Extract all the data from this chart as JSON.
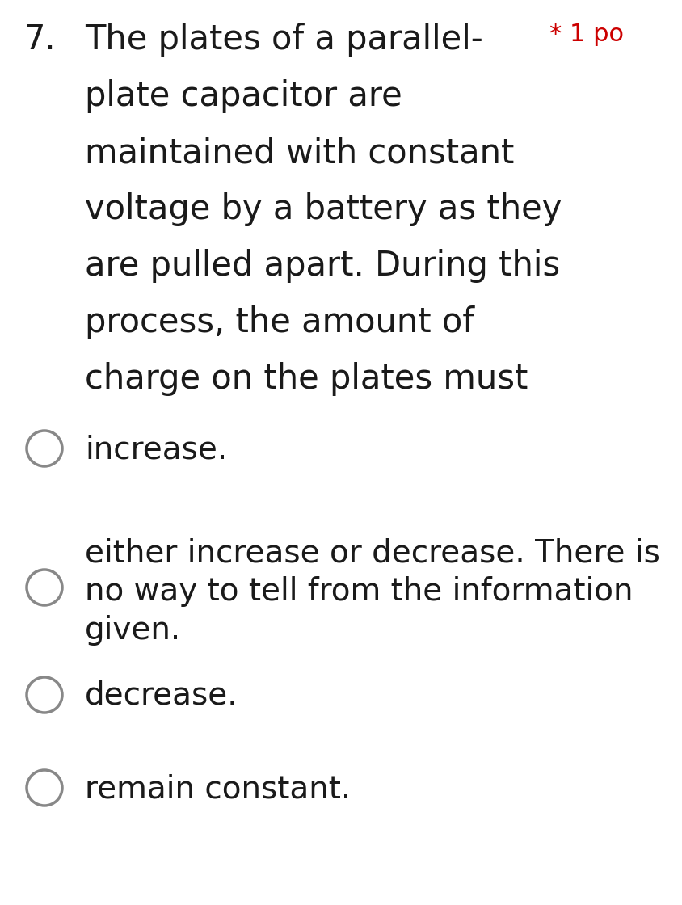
{
  "background_color": "#ffffff",
  "text_color": "#1a1a1a",
  "fig_width": 8.45,
  "fig_height": 11.2,
  "dpi": 100,
  "question_number": "7.",
  "question_number_fontsize": 30,
  "question_text_lines": [
    "The plates of a parallel-",
    "plate capacitor are",
    "maintained with constant",
    "voltage by a battery as they",
    "are pulled apart. During this",
    "process, the amount of",
    "charge on the plates must"
  ],
  "question_text_fontsize": 30,
  "star_text": "* 1 po",
  "star_color": "#cc0000",
  "star_fontsize": 22,
  "options": [
    {
      "id": 0,
      "lines": [
        "increase."
      ]
    },
    {
      "id": 1,
      "lines": [
        "either increase or decrease. There is",
        "no way to tell from the information",
        "given."
      ]
    },
    {
      "id": 2,
      "lines": [
        "decrease."
      ]
    },
    {
      "id": 3,
      "lines": [
        "remain constant."
      ]
    }
  ],
  "option_fontsize": 28,
  "circle_color": "#888888",
  "circle_linewidth": 2.5
}
